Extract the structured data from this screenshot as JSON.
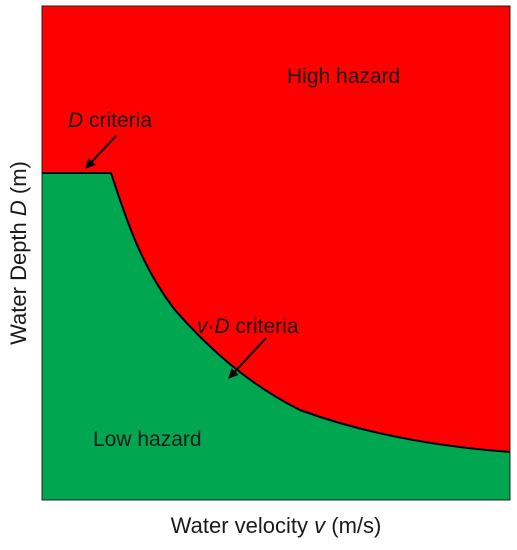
{
  "colors": {
    "high_hazard": "#ff0000",
    "low_hazard": "#00a650",
    "boundary": "#000000",
    "frame": "#222222"
  },
  "labels": {
    "high_hazard": "High hazard",
    "low_hazard": "Low hazard",
    "d_criteria_var": "D",
    "d_criteria_text": " criteria",
    "vd_criteria_v": "v",
    "vd_criteria_dot": "·",
    "vd_criteria_d": "D",
    "vd_criteria_text": " criteria"
  },
  "axes": {
    "x_label_text": "Water velocity ",
    "x_label_var": "v",
    "x_label_unit": " (m/s)",
    "y_label_text": "Water Depth ",
    "y_label_var": "D",
    "y_label_unit": " (m)"
  },
  "icons": {
    "d_criteria_arrow": "arrow-icon",
    "vd_criteria_arrow": "arrow-icon"
  }
}
